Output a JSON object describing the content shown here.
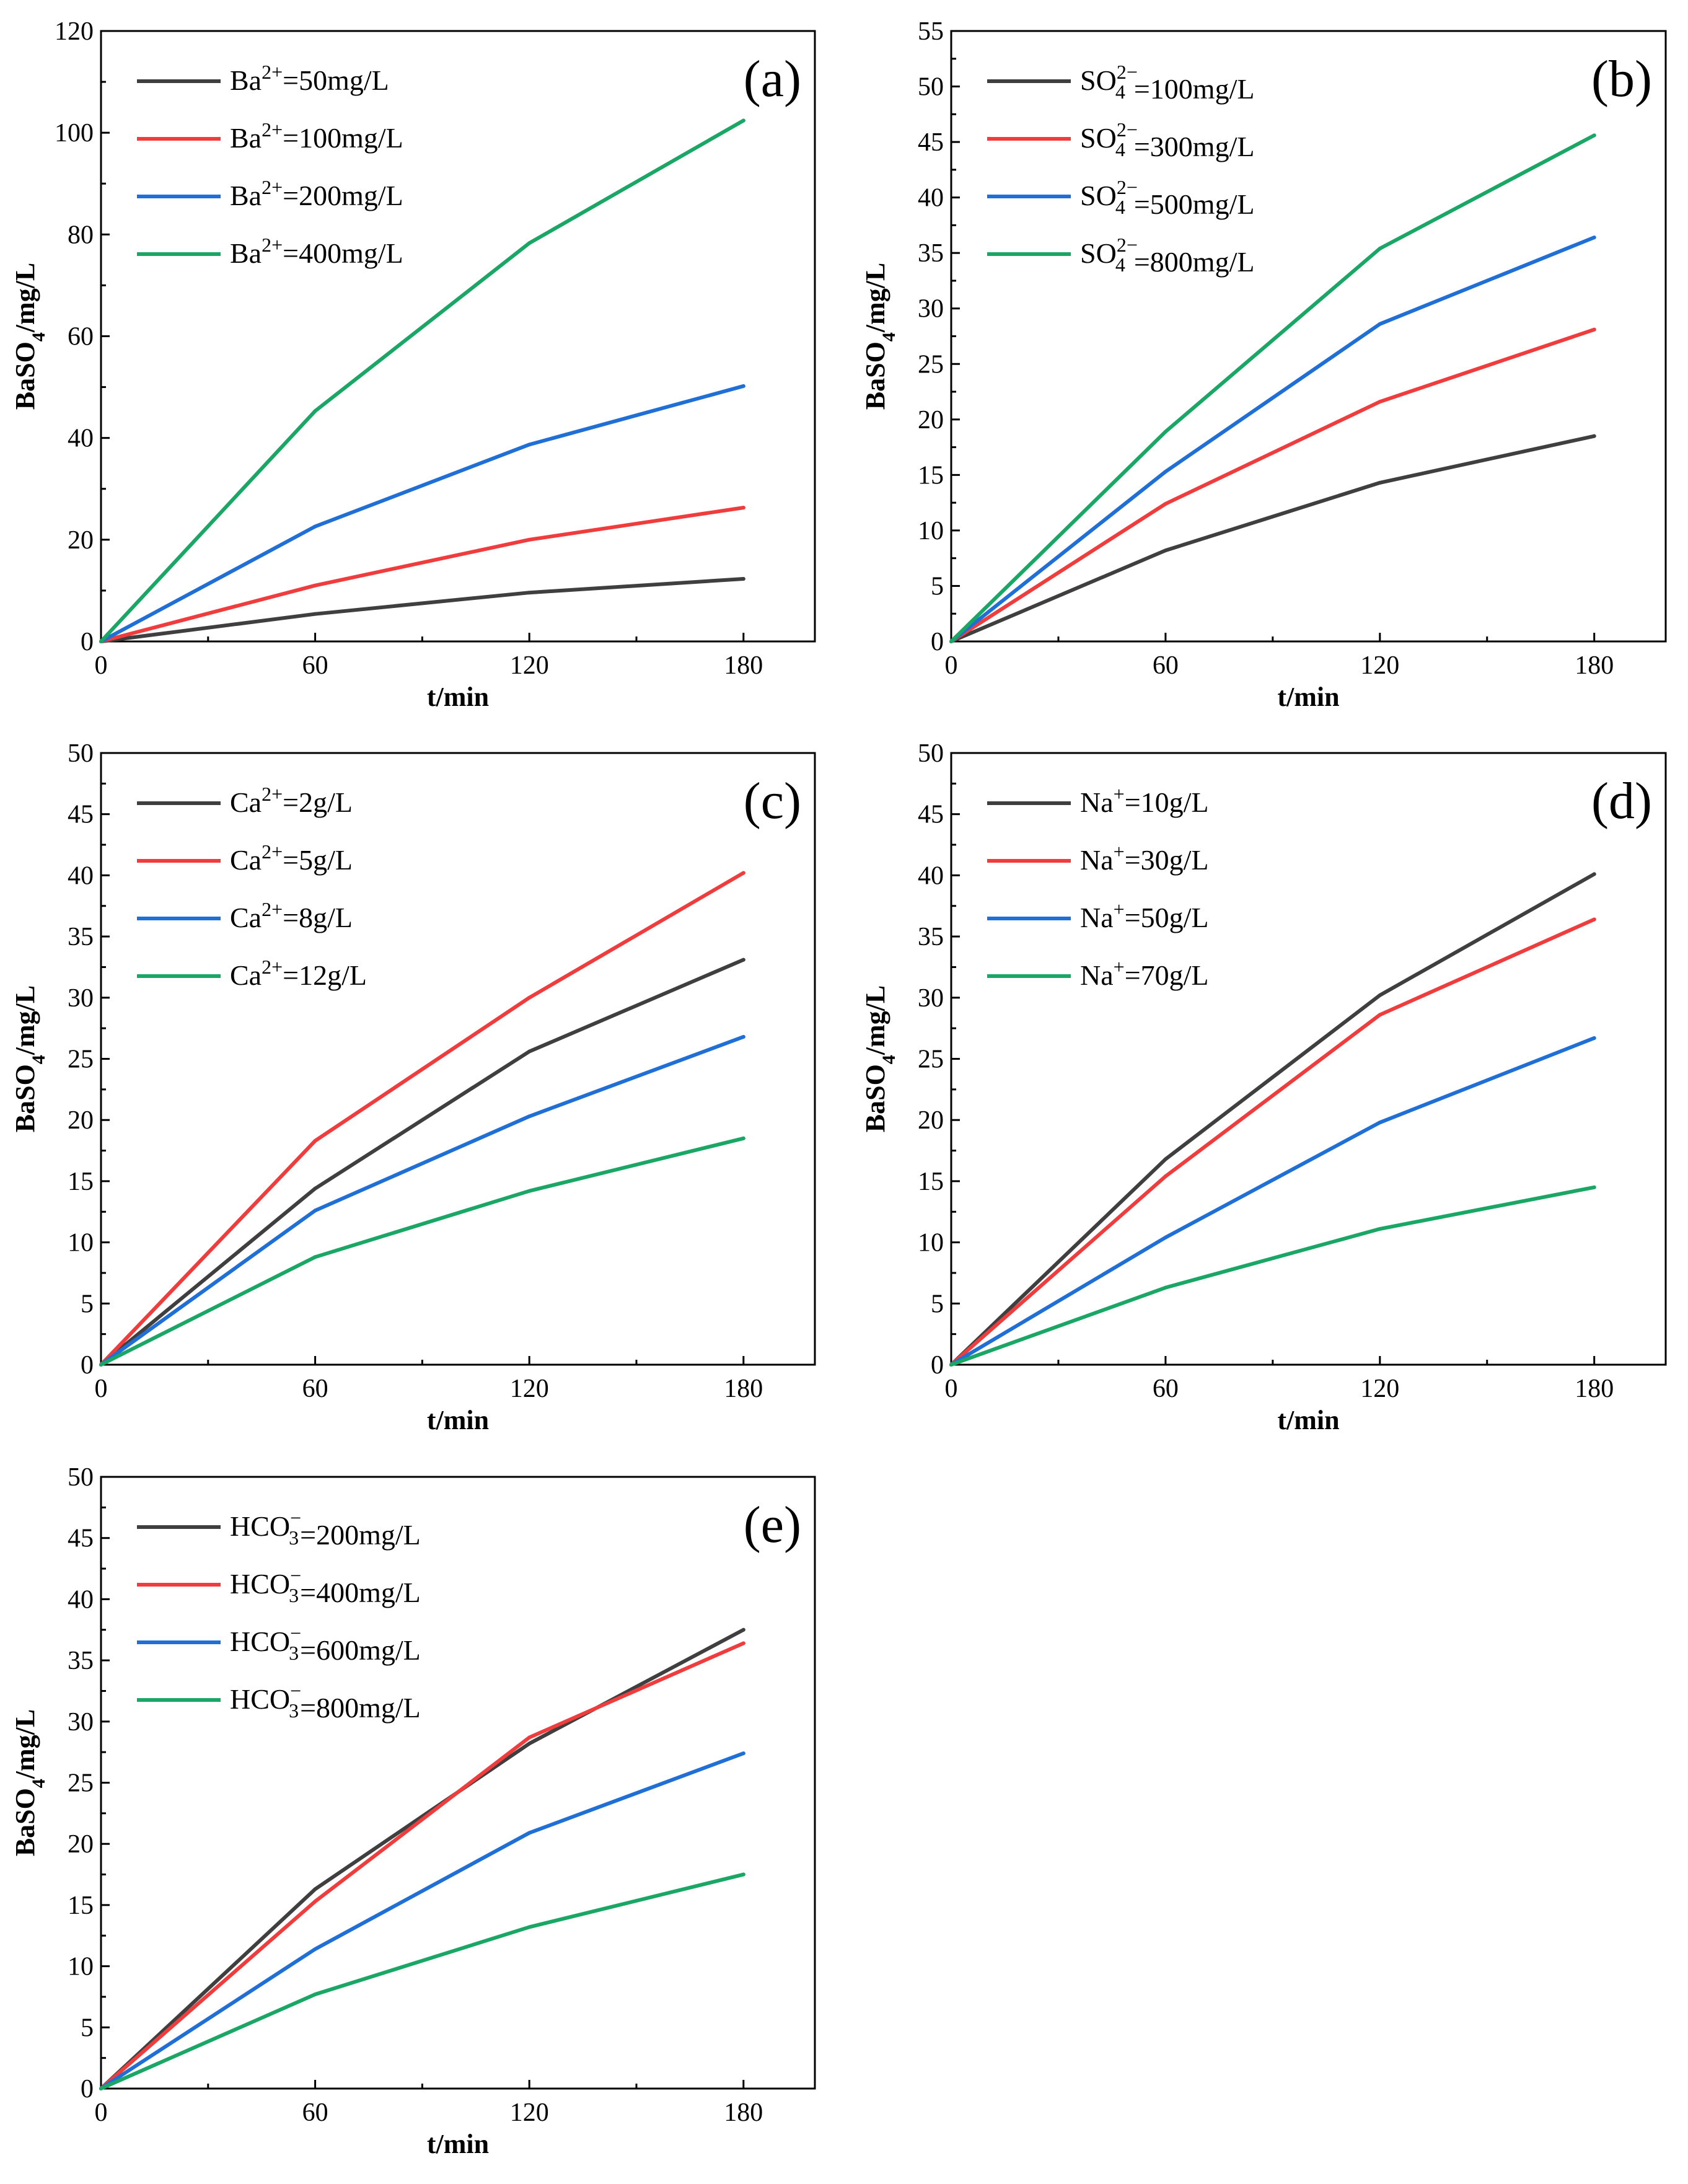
{
  "colors": {
    "black": "#3f3f3f",
    "red": "#f03c3c",
    "blue": "#1f6fd6",
    "green": "#1aa665"
  },
  "chart_data": [
    {
      "type": "line",
      "panel_label": "(a)",
      "xlabel": "t/min",
      "ylabel": {
        "base": "BaSO",
        "sub": "4",
        "tail": "/mg/L"
      },
      "x": [
        0,
        60,
        120,
        180
      ],
      "xlim": [
        0,
        200
      ],
      "ylim": [
        0,
        120
      ],
      "xticks": [
        0,
        60,
        120,
        180
      ],
      "yticks": [
        0,
        20,
        40,
        60,
        80,
        100,
        120
      ],
      "legend_position": "top-left",
      "series": [
        {
          "name": "Ba2+=50mg/L",
          "label": {
            "pre": "Ba",
            "sup": "2+",
            "sub": "",
            "post": "=50mg/L"
          },
          "color": "#3f3f3f",
          "values": [
            0,
            5.4,
            9.6,
            12.3
          ]
        },
        {
          "name": "Ba2+=100mg/L",
          "label": {
            "pre": "Ba",
            "sup": "2+",
            "sub": "",
            "post": "=100mg/L"
          },
          "color": "#f03c3c",
          "values": [
            0,
            11.0,
            20.0,
            26.3
          ]
        },
        {
          "name": "Ba2+=200mg/L",
          "label": {
            "pre": "Ba",
            "sup": "2+",
            "sub": "",
            "post": "=200mg/L"
          },
          "color": "#1f6fd6",
          "values": [
            0,
            22.6,
            38.7,
            50.2
          ]
        },
        {
          "name": "Ba2+=400mg/L",
          "label": {
            "pre": "Ba",
            "sup": "2+",
            "sub": "",
            "post": "=400mg/L"
          },
          "color": "#1aa665",
          "values": [
            0,
            45.3,
            78.3,
            102.4
          ]
        }
      ]
    },
    {
      "type": "line",
      "panel_label": "(b)",
      "xlabel": "t/min",
      "ylabel": {
        "base": "BaSO",
        "sub": "4",
        "tail": "/mg/L"
      },
      "x": [
        0,
        60,
        120,
        180
      ],
      "xlim": [
        0,
        200
      ],
      "ylim": [
        0,
        55
      ],
      "xticks": [
        0,
        60,
        120,
        180
      ],
      "yticks": [
        0,
        5,
        10,
        15,
        20,
        25,
        30,
        35,
        40,
        45,
        50,
        55
      ],
      "legend_position": "top-left",
      "series": [
        {
          "name": "SO42−=100mg/L",
          "label": {
            "pre": "SO",
            "sup": "2−",
            "sub": "4",
            "post": "=100mg/L"
          },
          "color": "#3f3f3f",
          "values": [
            0,
            8.2,
            14.3,
            18.5
          ]
        },
        {
          "name": "SO42−=300mg/L",
          "label": {
            "pre": "SO",
            "sup": "2−",
            "sub": "4",
            "post": "=300mg/L"
          },
          "color": "#f03c3c",
          "values": [
            0,
            12.4,
            21.6,
            28.1
          ]
        },
        {
          "name": "SO42−=500mg/L",
          "label": {
            "pre": "SO",
            "sup": "2−",
            "sub": "4",
            "post": "=500mg/L"
          },
          "color": "#1f6fd6",
          "values": [
            0,
            15.3,
            28.6,
            36.4
          ]
        },
        {
          "name": "SO42−=800mg/L",
          "label": {
            "pre": "SO",
            "sup": "2−",
            "sub": "4",
            "post": "=800mg/L"
          },
          "color": "#1aa665",
          "values": [
            0,
            18.9,
            35.4,
            45.6
          ]
        }
      ]
    },
    {
      "type": "line",
      "panel_label": "(c)",
      "xlabel": "t/min",
      "ylabel": {
        "base": "BaSO",
        "sub": "4",
        "tail": "/mg/L"
      },
      "x": [
        0,
        60,
        120,
        180
      ],
      "xlim": [
        0,
        200
      ],
      "ylim": [
        0,
        50
      ],
      "xticks": [
        0,
        60,
        120,
        180
      ],
      "yticks": [
        0,
        5,
        10,
        15,
        20,
        25,
        30,
        35,
        40,
        45,
        50
      ],
      "legend_position": "top-left",
      "series": [
        {
          "name": "Ca2+=2g/L",
          "label": {
            "pre": "Ca",
            "sup": "2+",
            "sub": "",
            "post": "=2g/L"
          },
          "color": "#3f3f3f",
          "values": [
            0,
            14.4,
            25.6,
            33.1
          ]
        },
        {
          "name": "Ca2+=5g/L",
          "label": {
            "pre": "Ca",
            "sup": "2+",
            "sub": "",
            "post": "=5g/L"
          },
          "color": "#f03c3c",
          "values": [
            0,
            18.3,
            30.0,
            40.2
          ]
        },
        {
          "name": "Ca2+=8g/L",
          "label": {
            "pre": "Ca",
            "sup": "2+",
            "sub": "",
            "post": "=8g/L"
          },
          "color": "#1f6fd6",
          "values": [
            0,
            12.6,
            20.3,
            26.8
          ]
        },
        {
          "name": "Ca2+=12g/L",
          "label": {
            "pre": "Ca",
            "sup": "2+",
            "sub": "",
            "post": "=12g/L"
          },
          "color": "#1aa665",
          "values": [
            0,
            8.8,
            14.2,
            18.5
          ]
        }
      ]
    },
    {
      "type": "line",
      "panel_label": "(d)",
      "xlabel": "t/min",
      "ylabel": {
        "base": "BaSO",
        "sub": "4",
        "tail": "/mg/L"
      },
      "x": [
        0,
        60,
        120,
        180
      ],
      "xlim": [
        0,
        200
      ],
      "ylim": [
        0,
        50
      ],
      "xticks": [
        0,
        60,
        120,
        180
      ],
      "yticks": [
        0,
        5,
        10,
        15,
        20,
        25,
        30,
        35,
        40,
        45,
        50
      ],
      "legend_position": "top-left",
      "series": [
        {
          "name": "Na+=10g/L",
          "label": {
            "pre": "Na",
            "sup": "+",
            "sub": "",
            "post": "=10g/L"
          },
          "color": "#3f3f3f",
          "values": [
            0,
            16.8,
            30.2,
            40.1
          ]
        },
        {
          "name": "Na+=30g/L",
          "label": {
            "pre": "Na",
            "sup": "+",
            "sub": "",
            "post": "=30g/L"
          },
          "color": "#f03c3c",
          "values": [
            0,
            15.4,
            28.6,
            36.4
          ]
        },
        {
          "name": "Na+=50g/L",
          "label": {
            "pre": "Na",
            "sup": "+",
            "sub": "",
            "post": "=50g/L"
          },
          "color": "#1f6fd6",
          "values": [
            0,
            10.4,
            19.8,
            26.7
          ]
        },
        {
          "name": "Na+=70g/L",
          "label": {
            "pre": "Na",
            "sup": "+",
            "sub": "",
            "post": "=70g/L"
          },
          "color": "#1aa665",
          "values": [
            0,
            6.3,
            11.1,
            14.5
          ]
        }
      ]
    },
    {
      "type": "line",
      "panel_label": "(e)",
      "xlabel": "t/min",
      "ylabel": {
        "base": "BaSO",
        "sub": "4",
        "tail": "/mg/L"
      },
      "x": [
        0,
        60,
        120,
        180
      ],
      "xlim": [
        0,
        200
      ],
      "ylim": [
        0,
        50
      ],
      "xticks": [
        0,
        60,
        120,
        180
      ],
      "yticks": [
        0,
        5,
        10,
        15,
        20,
        25,
        30,
        35,
        40,
        45,
        50
      ],
      "legend_position": "top-left",
      "series": [
        {
          "name": "HCO3−=200mg/L",
          "label": {
            "pre": "HCO",
            "sup": "−",
            "sub": "3",
            "post": "=200mg/L"
          },
          "color": "#3f3f3f",
          "values": [
            0,
            16.3,
            28.2,
            37.5
          ]
        },
        {
          "name": "HCO3−=400mg/L",
          "label": {
            "pre": "HCO",
            "sup": "−",
            "sub": "3",
            "post": "=400mg/L"
          },
          "color": "#f03c3c",
          "values": [
            0,
            15.3,
            28.7,
            36.4
          ]
        },
        {
          "name": "HCO3−=600mg/L",
          "label": {
            "pre": "HCO",
            "sup": "−",
            "sub": "3",
            "post": "=600mg/L"
          },
          "color": "#1f6fd6",
          "values": [
            0,
            11.4,
            20.9,
            27.4
          ]
        },
        {
          "name": "HCO3−=800mg/L",
          "label": {
            "pre": "HCO",
            "sup": "−",
            "sub": "3",
            "post": "=800mg/L"
          },
          "color": "#1aa665",
          "values": [
            0,
            7.7,
            13.2,
            17.5
          ]
        }
      ]
    }
  ]
}
